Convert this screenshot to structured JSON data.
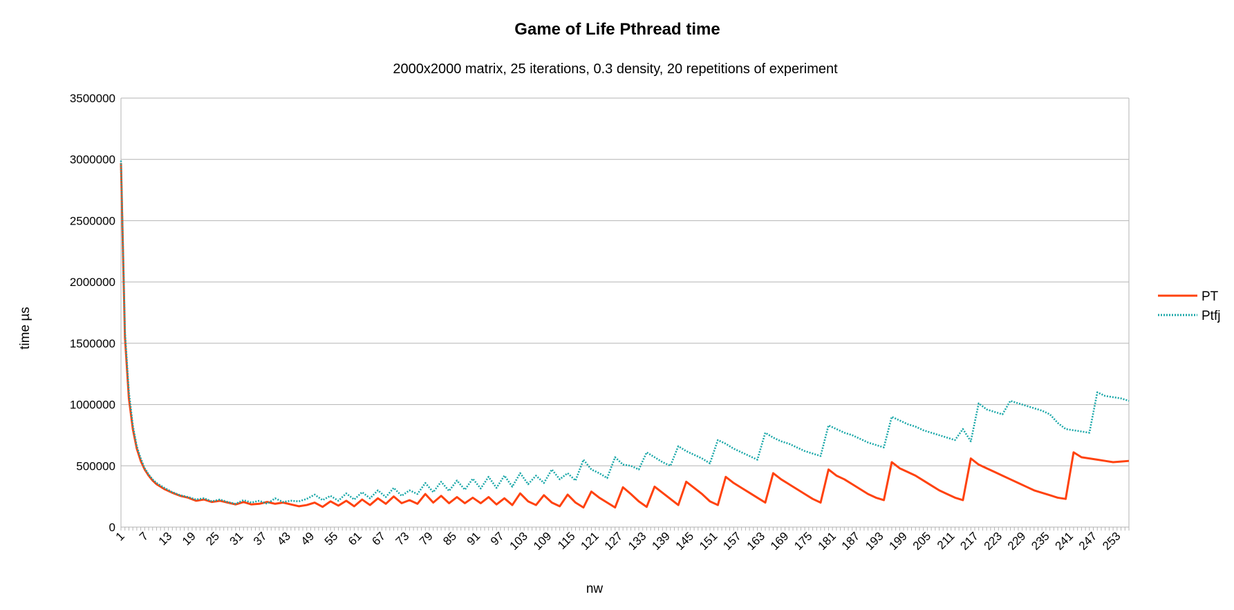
{
  "chart_data": {
    "type": "line",
    "title": "Game of Life Pthread time",
    "subtitle": "2000x2000 matrix, 25 iterations, 0.3 density, 20 repetitions of experiment",
    "xlabel": "nw",
    "ylabel": "time µs",
    "ylim": [
      0,
      3500000
    ],
    "yticks": [
      0,
      500000,
      1000000,
      1500000,
      2000000,
      2500000,
      3000000,
      3500000
    ],
    "xlim": [
      1,
      256
    ],
    "xticks": [
      1,
      7,
      13,
      19,
      25,
      31,
      37,
      43,
      49,
      55,
      61,
      67,
      73,
      79,
      85,
      91,
      97,
      103,
      109,
      115,
      121,
      127,
      133,
      139,
      145,
      151,
      157,
      163,
      169,
      175,
      181,
      187,
      193,
      199,
      205,
      211,
      217,
      223,
      229,
      235,
      241,
      247,
      253
    ],
    "grid": true,
    "legend_position": "right",
    "series": [
      {
        "name": "PT",
        "color": "#ff420e",
        "style": "solid",
        "points": [
          [
            1,
            2970000
          ],
          [
            2,
            1550000
          ],
          [
            3,
            1050000
          ],
          [
            4,
            800000
          ],
          [
            5,
            640000
          ],
          [
            6,
            540000
          ],
          [
            7,
            470000
          ],
          [
            8,
            420000
          ],
          [
            9,
            380000
          ],
          [
            10,
            350000
          ],
          [
            12,
            310000
          ],
          [
            14,
            280000
          ],
          [
            16,
            255000
          ],
          [
            18,
            240000
          ],
          [
            20,
            215000
          ],
          [
            22,
            225000
          ],
          [
            24,
            205000
          ],
          [
            26,
            215000
          ],
          [
            28,
            200000
          ],
          [
            30,
            185000
          ],
          [
            32,
            205000
          ],
          [
            34,
            185000
          ],
          [
            36,
            190000
          ],
          [
            38,
            205000
          ],
          [
            40,
            190000
          ],
          [
            42,
            200000
          ],
          [
            44,
            185000
          ],
          [
            46,
            170000
          ],
          [
            48,
            180000
          ],
          [
            50,
            200000
          ],
          [
            52,
            165000
          ],
          [
            54,
            210000
          ],
          [
            56,
            175000
          ],
          [
            58,
            215000
          ],
          [
            60,
            170000
          ],
          [
            62,
            225000
          ],
          [
            64,
            180000
          ],
          [
            66,
            235000
          ],
          [
            68,
            190000
          ],
          [
            70,
            250000
          ],
          [
            72,
            195000
          ],
          [
            74,
            220000
          ],
          [
            76,
            190000
          ],
          [
            78,
            270000
          ],
          [
            80,
            200000
          ],
          [
            82,
            255000
          ],
          [
            84,
            195000
          ],
          [
            86,
            245000
          ],
          [
            88,
            195000
          ],
          [
            90,
            240000
          ],
          [
            92,
            195000
          ],
          [
            94,
            245000
          ],
          [
            96,
            185000
          ],
          [
            98,
            235000
          ],
          [
            100,
            180000
          ],
          [
            102,
            275000
          ],
          [
            104,
            210000
          ],
          [
            106,
            180000
          ],
          [
            108,
            260000
          ],
          [
            110,
            200000
          ],
          [
            112,
            170000
          ],
          [
            114,
            265000
          ],
          [
            116,
            200000
          ],
          [
            118,
            160000
          ],
          [
            120,
            290000
          ],
          [
            122,
            240000
          ],
          [
            124,
            200000
          ],
          [
            126,
            160000
          ],
          [
            128,
            325000
          ],
          [
            130,
            270000
          ],
          [
            132,
            210000
          ],
          [
            134,
            165000
          ],
          [
            136,
            330000
          ],
          [
            138,
            280000
          ],
          [
            140,
            230000
          ],
          [
            142,
            180000
          ],
          [
            144,
            370000
          ],
          [
            146,
            320000
          ],
          [
            148,
            270000
          ],
          [
            150,
            210000
          ],
          [
            152,
            180000
          ],
          [
            154,
            410000
          ],
          [
            156,
            360000
          ],
          [
            158,
            320000
          ],
          [
            160,
            280000
          ],
          [
            162,
            240000
          ],
          [
            164,
            200000
          ],
          [
            166,
            440000
          ],
          [
            168,
            390000
          ],
          [
            170,
            350000
          ],
          [
            172,
            310000
          ],
          [
            174,
            270000
          ],
          [
            176,
            230000
          ],
          [
            178,
            200000
          ],
          [
            180,
            470000
          ],
          [
            182,
            420000
          ],
          [
            184,
            390000
          ],
          [
            186,
            350000
          ],
          [
            188,
            310000
          ],
          [
            190,
            270000
          ],
          [
            192,
            240000
          ],
          [
            194,
            220000
          ],
          [
            196,
            530000
          ],
          [
            198,
            480000
          ],
          [
            200,
            450000
          ],
          [
            202,
            420000
          ],
          [
            204,
            380000
          ],
          [
            206,
            340000
          ],
          [
            208,
            300000
          ],
          [
            210,
            270000
          ],
          [
            212,
            240000
          ],
          [
            214,
            220000
          ],
          [
            216,
            560000
          ],
          [
            218,
            510000
          ],
          [
            220,
            480000
          ],
          [
            222,
            450000
          ],
          [
            224,
            420000
          ],
          [
            226,
            390000
          ],
          [
            228,
            360000
          ],
          [
            230,
            330000
          ],
          [
            232,
            300000
          ],
          [
            234,
            280000
          ],
          [
            236,
            260000
          ],
          [
            238,
            240000
          ],
          [
            240,
            230000
          ],
          [
            242,
            610000
          ],
          [
            244,
            570000
          ],
          [
            246,
            560000
          ],
          [
            248,
            550000
          ],
          [
            250,
            540000
          ],
          [
            252,
            530000
          ],
          [
            254,
            535000
          ],
          [
            256,
            540000
          ]
        ]
      },
      {
        "name": "Ptfj",
        "color": "#1aa7a8",
        "style": "dotted",
        "points": [
          [
            1,
            2990000
          ],
          [
            2,
            1600000
          ],
          [
            3,
            1100000
          ],
          [
            4,
            830000
          ],
          [
            5,
            660000
          ],
          [
            6,
            560000
          ],
          [
            7,
            480000
          ],
          [
            8,
            430000
          ],
          [
            9,
            390000
          ],
          [
            10,
            360000
          ],
          [
            12,
            320000
          ],
          [
            14,
            285000
          ],
          [
            16,
            260000
          ],
          [
            18,
            245000
          ],
          [
            20,
            225000
          ],
          [
            22,
            235000
          ],
          [
            24,
            210000
          ],
          [
            26,
            225000
          ],
          [
            28,
            205000
          ],
          [
            30,
            190000
          ],
          [
            32,
            220000
          ],
          [
            34,
            200000
          ],
          [
            36,
            215000
          ],
          [
            38,
            190000
          ],
          [
            40,
            235000
          ],
          [
            42,
            205000
          ],
          [
            44,
            215000
          ],
          [
            46,
            210000
          ],
          [
            48,
            230000
          ],
          [
            50,
            265000
          ],
          [
            52,
            220000
          ],
          [
            54,
            255000
          ],
          [
            56,
            215000
          ],
          [
            58,
            275000
          ],
          [
            60,
            225000
          ],
          [
            62,
            285000
          ],
          [
            64,
            235000
          ],
          [
            66,
            300000
          ],
          [
            68,
            245000
          ],
          [
            70,
            320000
          ],
          [
            72,
            255000
          ],
          [
            74,
            300000
          ],
          [
            76,
            270000
          ],
          [
            78,
            360000
          ],
          [
            80,
            285000
          ],
          [
            82,
            370000
          ],
          [
            84,
            295000
          ],
          [
            86,
            380000
          ],
          [
            88,
            305000
          ],
          [
            90,
            395000
          ],
          [
            92,
            315000
          ],
          [
            94,
            410000
          ],
          [
            96,
            320000
          ],
          [
            98,
            420000
          ],
          [
            100,
            330000
          ],
          [
            102,
            440000
          ],
          [
            104,
            350000
          ],
          [
            106,
            420000
          ],
          [
            108,
            360000
          ],
          [
            110,
            470000
          ],
          [
            112,
            390000
          ],
          [
            114,
            440000
          ],
          [
            116,
            380000
          ],
          [
            118,
            550000
          ],
          [
            120,
            470000
          ],
          [
            122,
            440000
          ],
          [
            124,
            400000
          ],
          [
            126,
            570000
          ],
          [
            128,
            510000
          ],
          [
            130,
            500000
          ],
          [
            132,
            470000
          ],
          [
            134,
            610000
          ],
          [
            136,
            570000
          ],
          [
            138,
            530000
          ],
          [
            140,
            500000
          ],
          [
            142,
            660000
          ],
          [
            144,
            620000
          ],
          [
            146,
            590000
          ],
          [
            148,
            560000
          ],
          [
            150,
            520000
          ],
          [
            152,
            710000
          ],
          [
            154,
            680000
          ],
          [
            156,
            640000
          ],
          [
            158,
            610000
          ],
          [
            160,
            580000
          ],
          [
            162,
            550000
          ],
          [
            164,
            770000
          ],
          [
            166,
            730000
          ],
          [
            168,
            700000
          ],
          [
            170,
            680000
          ],
          [
            172,
            650000
          ],
          [
            174,
            620000
          ],
          [
            176,
            600000
          ],
          [
            178,
            580000
          ],
          [
            180,
            830000
          ],
          [
            182,
            800000
          ],
          [
            184,
            770000
          ],
          [
            186,
            750000
          ],
          [
            188,
            720000
          ],
          [
            190,
            690000
          ],
          [
            192,
            670000
          ],
          [
            194,
            650000
          ],
          [
            196,
            900000
          ],
          [
            198,
            870000
          ],
          [
            200,
            840000
          ],
          [
            202,
            820000
          ],
          [
            204,
            790000
          ],
          [
            206,
            770000
          ],
          [
            208,
            750000
          ],
          [
            210,
            730000
          ],
          [
            212,
            710000
          ],
          [
            214,
            800000
          ],
          [
            216,
            700000
          ],
          [
            218,
            1010000
          ],
          [
            220,
            960000
          ],
          [
            222,
            940000
          ],
          [
            224,
            920000
          ],
          [
            226,
            1030000
          ],
          [
            228,
            1010000
          ],
          [
            230,
            990000
          ],
          [
            232,
            970000
          ],
          [
            234,
            950000
          ],
          [
            236,
            920000
          ],
          [
            238,
            850000
          ],
          [
            240,
            800000
          ],
          [
            242,
            790000
          ],
          [
            244,
            780000
          ],
          [
            246,
            770000
          ],
          [
            248,
            1100000
          ],
          [
            250,
            1070000
          ],
          [
            252,
            1060000
          ],
          [
            254,
            1050000
          ],
          [
            256,
            1030000
          ]
        ]
      }
    ]
  }
}
